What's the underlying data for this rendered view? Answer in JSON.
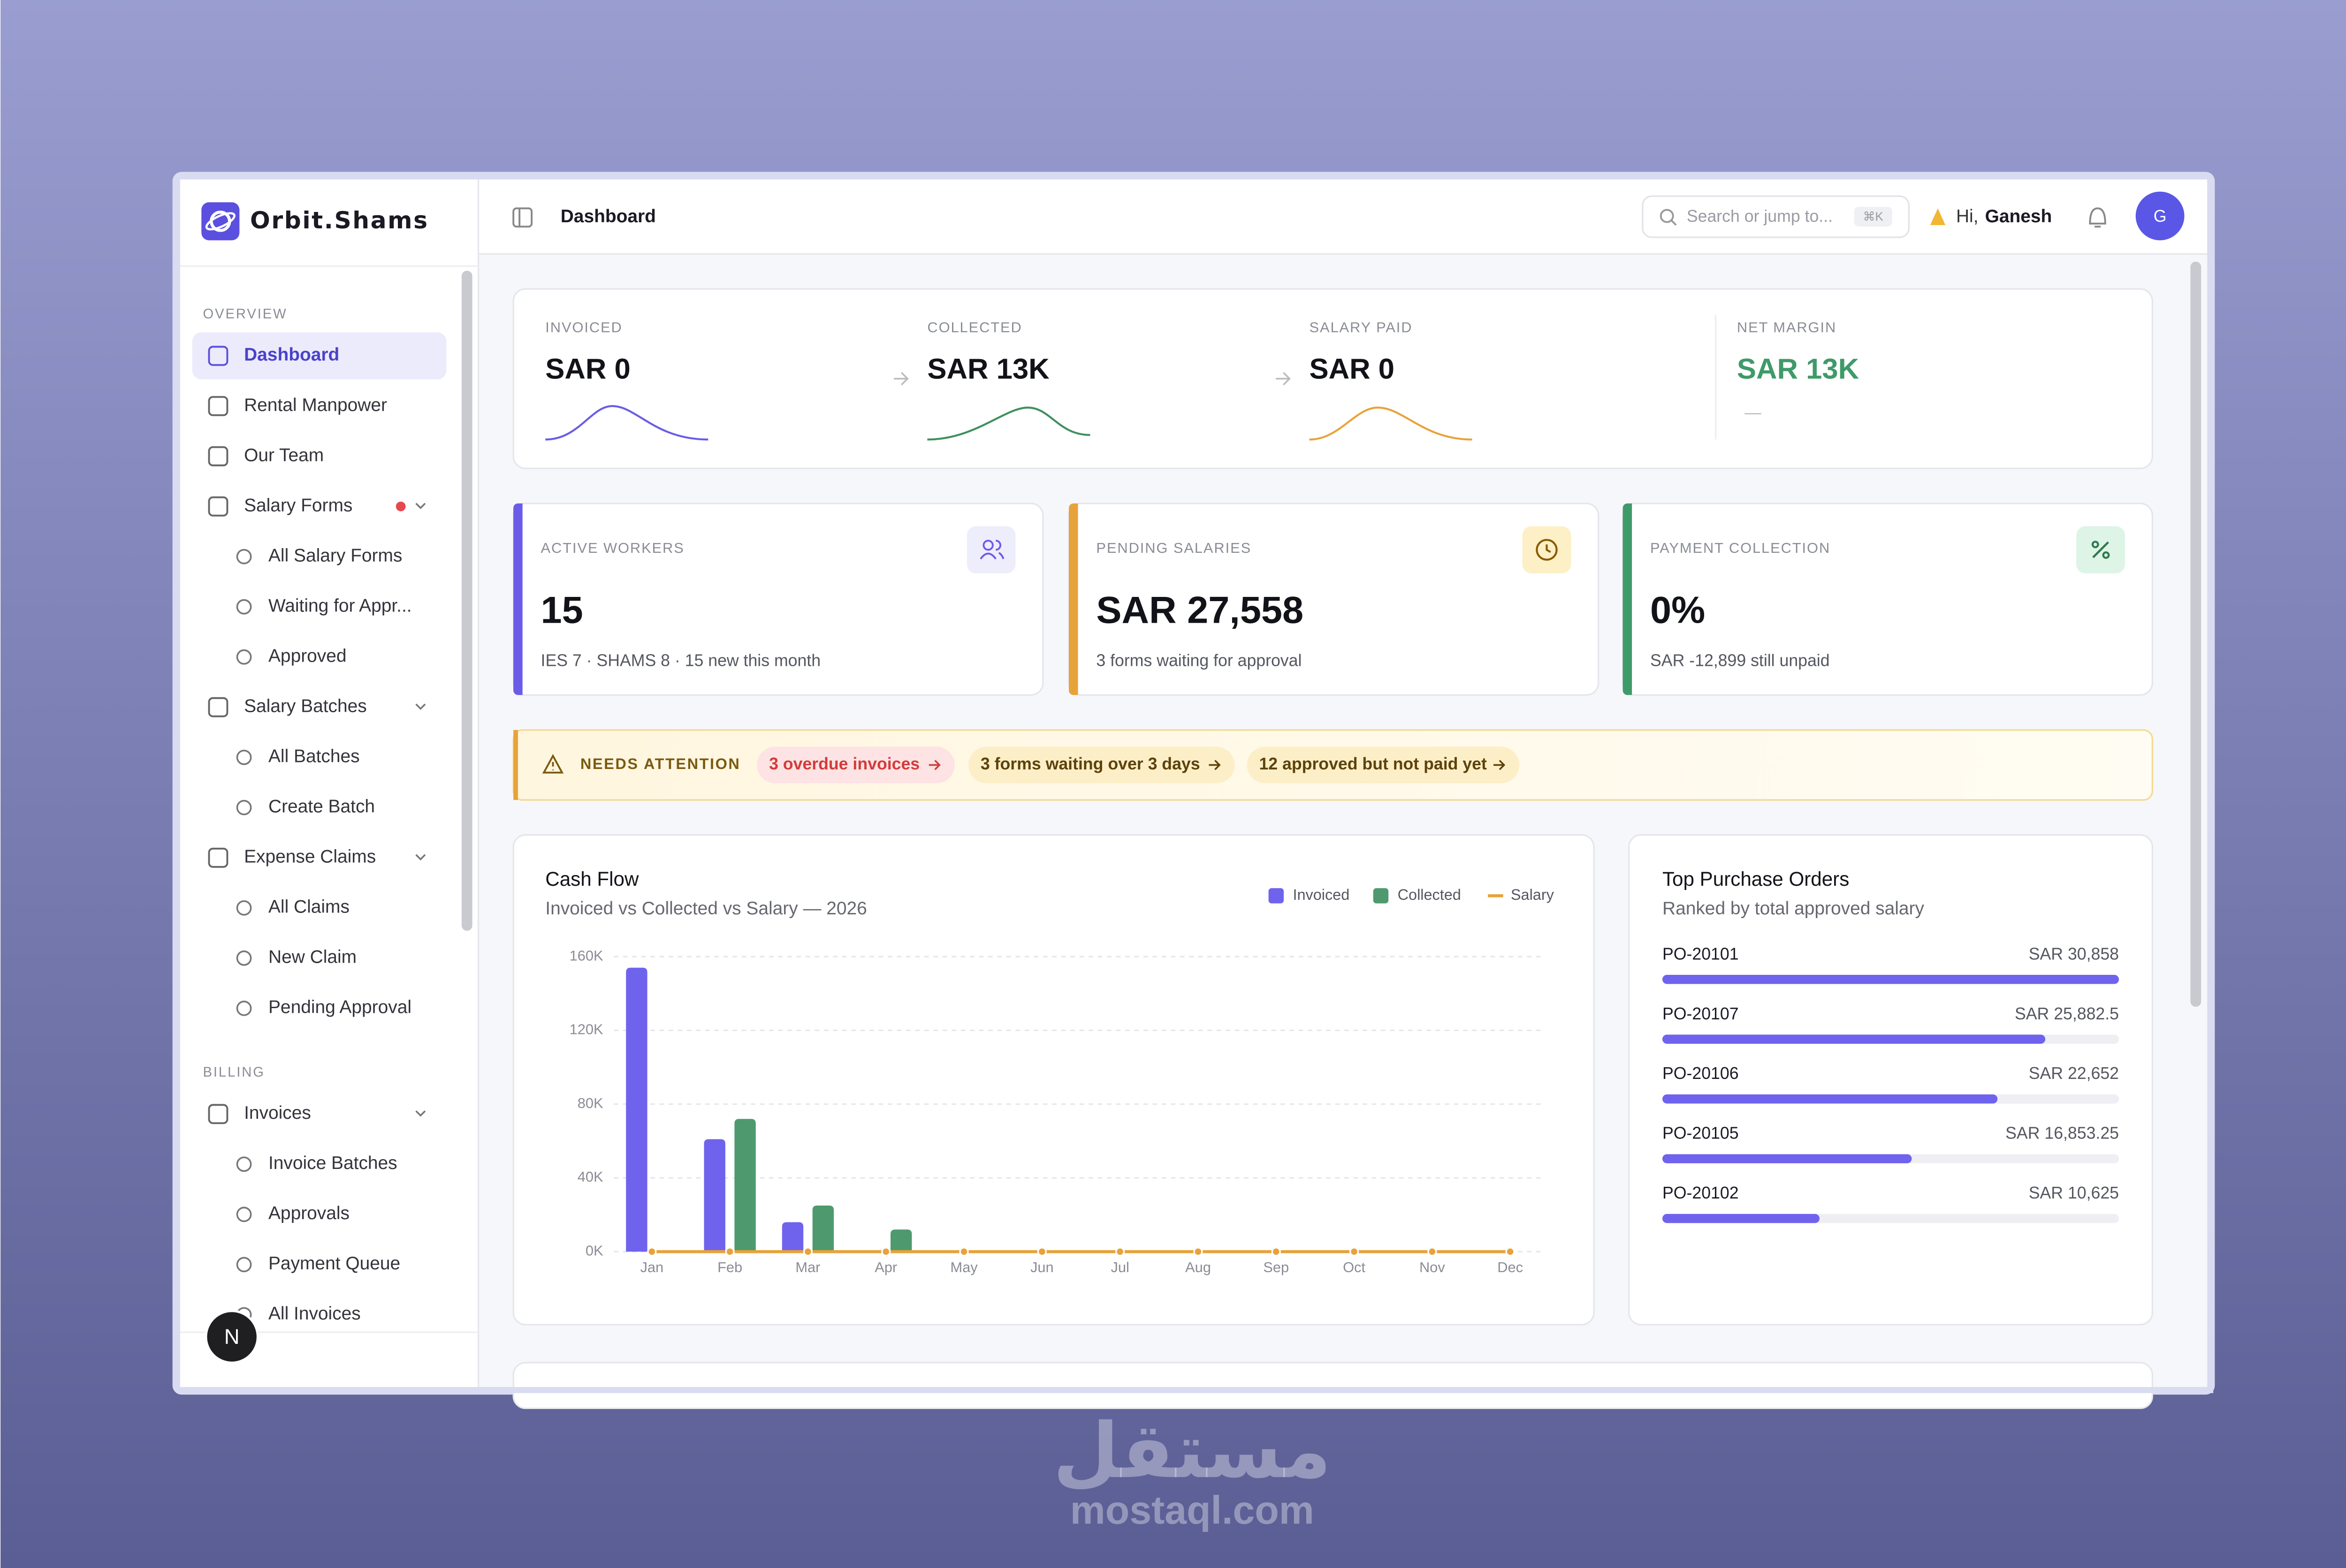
{
  "brand": "Orbit.Shams",
  "sidebar": {
    "sections": [
      {
        "label": "OVERVIEW",
        "items": [
          {
            "label": "Dashboard",
            "active": true
          },
          {
            "label": "Rental Manpower"
          },
          {
            "label": "Our Team"
          },
          {
            "label": "Salary Forms",
            "alert": true,
            "children": [
              {
                "label": "All Salary Forms"
              },
              {
                "label": "Waiting for Appr..."
              },
              {
                "label": "Approved"
              }
            ]
          },
          {
            "label": "Salary Batches",
            "children": [
              {
                "label": "All Batches"
              },
              {
                "label": "Create Batch"
              }
            ]
          },
          {
            "label": "Expense Claims",
            "children": [
              {
                "label": "All Claims"
              },
              {
                "label": "New Claim"
              },
              {
                "label": "Pending Approval"
              }
            ]
          }
        ]
      },
      {
        "label": "BILLING",
        "items": [
          {
            "label": "Invoices",
            "children": [
              {
                "label": "Invoice Batches"
              },
              {
                "label": "Approvals"
              },
              {
                "label": "Payment Queue"
              },
              {
                "label": "All Invoices"
              }
            ]
          }
        ]
      }
    ]
  },
  "dev_indicator": "N",
  "header": {
    "title": "Dashboard",
    "search_placeholder": "Search or jump to...",
    "shortcut": "⌘K",
    "greeting": "Hi,",
    "user": "Ganesh",
    "avatar": "G"
  },
  "kpis": [
    {
      "label": "INVOICED",
      "value": "SAR 0"
    },
    {
      "label": "COLLECTED",
      "value": "SAR 13K"
    },
    {
      "label": "SALARY PAID",
      "value": "SAR 0"
    },
    {
      "label": "NET MARGIN",
      "value": "SAR 13K",
      "note": "—"
    }
  ],
  "cards": [
    {
      "label": "ACTIVE WORKERS",
      "value": "15",
      "detail": "IES 7 · SHAMS 8 · 15 new this month",
      "color": "#6b5ce7"
    },
    {
      "label": "PENDING SALARIES",
      "value": "SAR 27,558",
      "detail": "3 forms waiting for approval",
      "color": "#e8a23a"
    },
    {
      "label": "PAYMENT COLLECTION",
      "value": "0%",
      "detail": "SAR -12,899 still unpaid",
      "color": "#3f9a6a"
    }
  ],
  "attention": {
    "label": "NEEDS ATTENTION",
    "items": [
      "3 overdue invoices",
      "3 forms waiting over 3 days",
      "12 approved but not paid yet"
    ]
  },
  "chart_data": [
    {
      "type": "bar",
      "title": "Cash Flow",
      "subtitle": "Invoiced vs Collected vs Salary — 2026",
      "categories": [
        "Jan",
        "Feb",
        "Mar",
        "Apr",
        "May",
        "Jun",
        "Jul",
        "Aug",
        "Sep",
        "Oct",
        "Nov",
        "Dec"
      ],
      "series": [
        {
          "name": "Invoiced",
          "color": "#6f63ee",
          "values": [
            154000,
            61000,
            16000,
            0,
            0,
            0,
            0,
            0,
            0,
            0,
            0,
            0
          ]
        },
        {
          "name": "Collected",
          "color": "#4e9a6e",
          "values": [
            0,
            72000,
            25000,
            12000,
            0,
            0,
            0,
            0,
            0,
            0,
            0,
            0
          ]
        },
        {
          "name": "Salary",
          "color": "#e8a23a",
          "type": "line",
          "values": [
            0,
            0,
            0,
            0,
            0,
            0,
            0,
            0,
            0,
            0,
            0,
            0
          ]
        }
      ],
      "ylim": [
        0,
        160000
      ],
      "yticks": [
        {
          "value": 0,
          "label": "0K"
        },
        {
          "value": 40000,
          "label": "40K"
        },
        {
          "value": 80000,
          "label": "80K"
        },
        {
          "value": 120000,
          "label": "120K"
        },
        {
          "value": 160000,
          "label": "160K"
        }
      ],
      "grid": true,
      "legend": "top-right"
    },
    {
      "type": "bar",
      "orientation": "horizontal",
      "title": "Top Purchase Orders",
      "subtitle": "Ranked by total approved salary",
      "categories": [
        "PO-20101",
        "PO-20107",
        "PO-20106",
        "PO-20105",
        "PO-20102"
      ],
      "values": [
        30858,
        25882.5,
        22652,
        16853.25,
        10625
      ],
      "value_labels": [
        "SAR 30,858",
        "SAR 25,882.5",
        "SAR 22,652",
        "SAR 16,853.25",
        "SAR 10,625"
      ],
      "color": "#6f63ee"
    }
  ],
  "watermark": {
    "logo": "مستقل",
    "site": "mostaql.com"
  }
}
